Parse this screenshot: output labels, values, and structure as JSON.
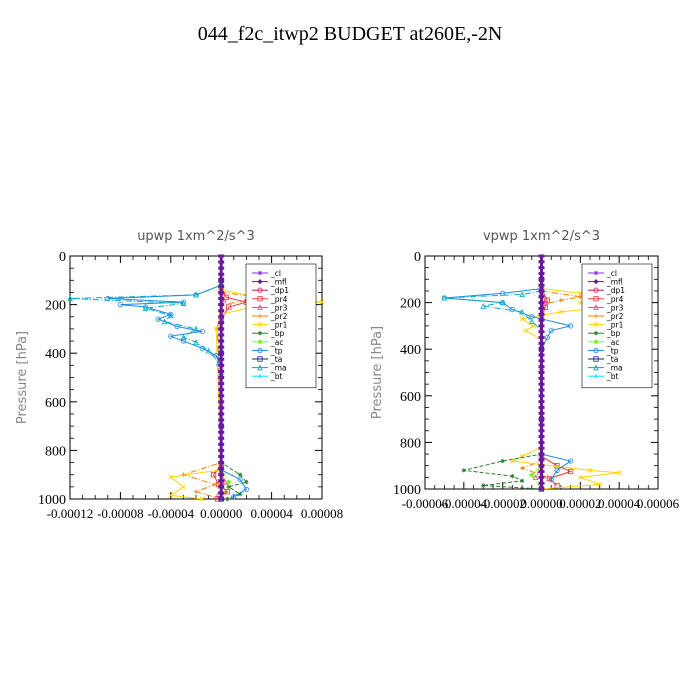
{
  "title": "044_f2c_itwp2  BUDGET at260E,-2N",
  "colors": {
    "_cl": "#8a2be2",
    "_mfl": "#6a1b9a",
    "_dp1": "#c2185b",
    "_pr4": "#e53935",
    "_pr3": "#ff4081",
    "_pr2": "#f57c00",
    "_pr1": "#ffd600",
    "_bp": "#2e7d32",
    "_ac": "#76ff03",
    "_tp": "#1e88e5",
    "_ta": "#1a237e",
    "_ma": "#00acc1",
    "_bt": "#00e5ff"
  },
  "chart_data": [
    {
      "type": "line",
      "title": "upwp   1xm^2/s^3",
      "ylabel": "Pressure [hPa]",
      "xlabel": "",
      "xlim": [
        -0.00012,
        8e-05
      ],
      "ylim": [
        1000,
        0
      ],
      "xticks": [
        "-0.00012",
        "-0.00008",
        "-0.00004",
        "0.00000",
        "0.00004",
        "0.00008"
      ],
      "yticks": [
        "0",
        "200",
        "400",
        "600",
        "800",
        "1000"
      ],
      "legend_position": "top-right",
      "legend": [
        "_cl",
        "_mfl",
        "_dp1",
        "_pr4",
        "_pr3",
        "_pr2",
        "_pr1",
        "_bp",
        "_ac",
        "_tp",
        "_ta",
        "_ma",
        "_bt"
      ],
      "series": [
        {
          "name": "_cl",
          "points": [
            [
              0,
              100
            ],
            [
              0,
              200
            ],
            [
              0,
              400
            ],
            [
              0,
              600
            ],
            [
              0,
              800
            ],
            [
              0,
              1000
            ]
          ]
        },
        {
          "name": "_mfl",
          "points": [
            [
              0,
              100
            ],
            [
              0,
              200
            ],
            [
              0,
              400
            ],
            [
              0,
              600
            ],
            [
              0,
              800
            ],
            [
              0,
              1000
            ]
          ]
        },
        {
          "name": "_dp1",
          "points": [
            [
              0,
              100
            ],
            [
              0,
              300
            ],
            [
              0,
              500
            ],
            [
              0,
              700
            ],
            [
              0,
              900
            ],
            [
              0,
              1000
            ]
          ]
        },
        {
          "name": "_pr4",
          "points": [
            [
              0,
              130
            ],
            [
              4e-06,
              170
            ],
            [
              2e-05,
              190
            ],
            [
              6e-06,
              210
            ],
            [
              0,
              260
            ],
            [
              0,
              860
            ],
            [
              -6e-06,
              900
            ],
            [
              -2e-06,
              940
            ],
            [
              5e-06,
              970
            ],
            [
              -3e-06,
              1000
            ]
          ]
        },
        {
          "name": "_pr3",
          "points": [
            [
              0,
              150
            ],
            [
              2e-06,
              180
            ],
            [
              0,
              220
            ],
            [
              0,
              880
            ],
            [
              3e-06,
              930
            ],
            [
              -2e-06,
              980
            ]
          ]
        },
        {
          "name": "_pr2",
          "points": [
            [
              0,
              150
            ],
            [
              4e-05,
              175
            ],
            [
              2e-05,
              185
            ],
            [
              0,
              200
            ],
            [
              -3e-06,
              300
            ],
            [
              0,
              850
            ],
            [
              -3e-05,
              900
            ],
            [
              -5e-06,
              940
            ],
            [
              -2e-05,
              970
            ],
            [
              0,
              1000
            ]
          ]
        },
        {
          "name": "_pr1",
          "points": [
            [
              0,
              140
            ],
            [
              3e-05,
              170
            ],
            [
              4.5e-05,
              180
            ],
            [
              8e-05,
              190
            ],
            [
              2.5e-05,
              210
            ],
            [
              0,
              240
            ],
            [
              -4e-06,
              300
            ],
            [
              0,
              880
            ],
            [
              -4e-05,
              910
            ],
            [
              -3e-05,
              950
            ],
            [
              -4e-05,
              985
            ],
            [
              -1.5e-05,
              1000
            ]
          ]
        },
        {
          "name": "_bp",
          "points": [
            [
              0,
              200
            ],
            [
              0,
              850
            ],
            [
              1.5e-05,
              900
            ],
            [
              2e-05,
              930
            ],
            [
              6e-06,
              950
            ],
            [
              1.5e-05,
              980
            ],
            [
              5e-06,
              1000
            ]
          ]
        },
        {
          "name": "_ac",
          "points": [
            [
              0,
              250
            ],
            [
              0,
              880
            ],
            [
              6e-06,
              930
            ],
            [
              0,
              1000
            ]
          ]
        },
        {
          "name": "_tp",
          "points": [
            [
              0,
              120
            ],
            [
              -2e-05,
              160
            ],
            [
              -9e-05,
              175
            ],
            [
              -3e-05,
              190
            ],
            [
              -8e-05,
              200
            ],
            [
              -6e-05,
              210
            ],
            [
              -4e-05,
              240
            ],
            [
              -5e-05,
              260
            ],
            [
              -3.5e-05,
              290
            ],
            [
              -1.5e-05,
              310
            ],
            [
              -4e-05,
              330
            ],
            [
              -3e-05,
              350
            ],
            [
              -1.5e-05,
              380
            ],
            [
              -4e-06,
              410
            ],
            [
              0,
              450
            ],
            [
              0,
              880
            ],
            [
              1.5e-05,
              920
            ],
            [
              2e-05,
              960
            ],
            [
              1e-05,
              990
            ]
          ]
        },
        {
          "name": "_ta",
          "points": [
            [
              0,
              100
            ],
            [
              0,
              400
            ],
            [
              0,
              700
            ],
            [
              0,
              1000
            ]
          ]
        },
        {
          "name": "_ma",
          "points": [
            [
              0,
              120
            ],
            [
              -2e-05,
              160
            ],
            [
              -0.00012,
              175
            ],
            [
              -3e-05,
              195
            ],
            [
              -6e-05,
              215
            ],
            [
              -4e-05,
              245
            ],
            [
              -4.5e-05,
              270
            ],
            [
              -2e-05,
              300
            ],
            [
              -3e-05,
              335
            ],
            [
              -2e-05,
              355
            ],
            [
              -1e-05,
              390
            ],
            [
              -2e-06,
              440
            ],
            [
              0,
              480
            ]
          ]
        },
        {
          "name": "_bt",
          "points": [
            [
              0,
              100
            ],
            [
              0,
              300
            ],
            [
              0,
              500
            ],
            [
              0,
              700
            ],
            [
              0,
              900
            ],
            [
              0,
              1000
            ]
          ]
        }
      ]
    },
    {
      "type": "line",
      "title": "vpwp   1xm^2/s^3",
      "ylabel": "Pressure [hPa]",
      "xlabel": "",
      "xlim": [
        -6e-05,
        6e-05
      ],
      "ylim": [
        1000,
        0
      ],
      "xticks": [
        "-0.00006",
        "-0.00004",
        "-0.00002",
        "0.00000",
        "0.00002",
        "0.00004",
        "0.00006"
      ],
      "yticks": [
        "0",
        "200",
        "400",
        "600",
        "800",
        "1000"
      ],
      "legend_position": "top-right",
      "legend": [
        "_cl",
        "_mfl",
        "_dp1",
        "_pr4",
        "_pr3",
        "_pr2",
        "_pr1",
        "_bp",
        "_ac",
        "_tp",
        "_ta",
        "_ma",
        "_bt"
      ],
      "series": [
        {
          "name": "_cl",
          "points": [
            [
              0,
              100
            ],
            [
              0,
              300
            ],
            [
              0,
              500
            ],
            [
              0,
              700
            ],
            [
              0,
              900
            ],
            [
              0,
              1000
            ]
          ]
        },
        {
          "name": "_mfl",
          "points": [
            [
              0,
              100
            ],
            [
              0,
              300
            ],
            [
              0,
              500
            ],
            [
              0,
              700
            ],
            [
              0,
              900
            ],
            [
              0,
              1000
            ]
          ]
        },
        {
          "name": "_dp1",
          "points": [
            [
              0,
              100
            ],
            [
              0,
              400
            ],
            [
              0,
              700
            ],
            [
              0,
              1000
            ]
          ]
        },
        {
          "name": "_pr4",
          "points": [
            [
              0,
              140
            ],
            [
              3e-06,
              190
            ],
            [
              2e-06,
              220
            ],
            [
              0,
              260
            ],
            [
              0,
              860
            ],
            [
              8e-06,
              900
            ],
            [
              1.5e-05,
              925
            ],
            [
              4e-06,
              955
            ],
            [
              8e-06,
              985
            ]
          ]
        },
        {
          "name": "_pr3",
          "points": [
            [
              0,
              160
            ],
            [
              2e-06,
              200
            ],
            [
              0,
              240
            ],
            [
              0,
              900
            ],
            [
              -3e-06,
              950
            ]
          ]
        },
        {
          "name": "_pr2",
          "points": [
            [
              0,
              150
            ],
            [
              2e-05,
              175
            ],
            [
              1e-05,
              190
            ],
            [
              0,
              210
            ],
            [
              0,
              880
            ],
            [
              -1e-05,
              910
            ],
            [
              3e-06,
              950
            ]
          ]
        },
        {
          "name": "_pr1",
          "points": [
            [
              0,
              140
            ],
            [
              2e-05,
              160
            ],
            [
              3.5e-05,
              180
            ],
            [
              2e-05,
              200
            ],
            [
              4e-05,
              215
            ],
            [
              1e-05,
              240
            ],
            [
              -1e-05,
              270
            ],
            [
              -4e-06,
              300
            ],
            [
              -8e-06,
              320
            ],
            [
              0,
              360
            ],
            [
              0,
              820
            ],
            [
              -1e-05,
              860
            ],
            [
              -1.5e-05,
              880
            ],
            [
              2.5e-05,
              920
            ],
            [
              4e-05,
              930
            ],
            [
              2e-05,
              950
            ],
            [
              3e-05,
              980
            ],
            [
              0,
              1000
            ]
          ]
        },
        {
          "name": "_bp",
          "points": [
            [
              0,
              280
            ],
            [
              0,
              850
            ],
            [
              -2e-05,
              880
            ],
            [
              -4e-05,
              920
            ],
            [
              -1.5e-05,
              945
            ],
            [
              -1e-05,
              965
            ],
            [
              -3e-05,
              985
            ],
            [
              0,
              1000
            ]
          ]
        },
        {
          "name": "_ac",
          "points": [
            [
              0,
              250
            ],
            [
              0,
              900
            ],
            [
              -5e-06,
              940
            ],
            [
              0,
              1000
            ]
          ]
        },
        {
          "name": "_tp",
          "points": [
            [
              0,
              140
            ],
            [
              -2e-05,
              160
            ],
            [
              -5e-05,
              180
            ],
            [
              -2e-05,
              200
            ],
            [
              -1.5e-05,
              230
            ],
            [
              -5e-06,
              260
            ],
            [
              1.5e-05,
              300
            ],
            [
              5e-06,
              320
            ],
            [
              3e-06,
              350
            ],
            [
              0,
              400
            ],
            [
              0,
              850
            ],
            [
              1.5e-05,
              880
            ],
            [
              8e-06,
              920
            ],
            [
              5e-06,
              960
            ]
          ]
        },
        {
          "name": "_ta",
          "points": [
            [
              0,
              100
            ],
            [
              0,
              400
            ],
            [
              0,
              700
            ],
            [
              0,
              1000
            ]
          ]
        },
        {
          "name": "_ma",
          "points": [
            [
              0,
              150
            ],
            [
              -1e-05,
              165
            ],
            [
              -5e-05,
              180
            ],
            [
              -2e-05,
              200
            ],
            [
              -3e-05,
              215
            ],
            [
              -1e-05,
              240
            ],
            [
              -5e-06,
              280
            ],
            [
              0,
              320
            ],
            [
              0,
              480
            ]
          ]
        },
        {
          "name": "_bt",
          "points": [
            [
              0,
              100
            ],
            [
              0,
              400
            ],
            [
              0,
              700
            ],
            [
              0,
              1000
            ]
          ]
        }
      ]
    }
  ]
}
